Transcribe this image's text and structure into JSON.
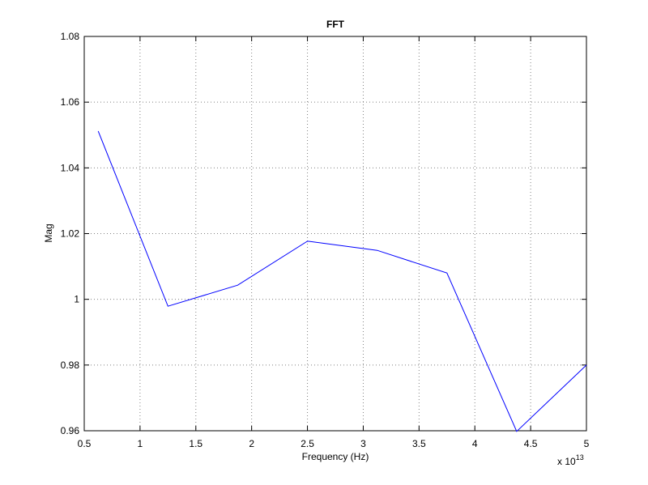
{
  "chart_data": {
    "type": "line",
    "title": "FFT",
    "x_label": "Frequency (Hz)",
    "y_label": "Mag",
    "x_multiplier": {
      "base": "x 10",
      "exponent": "13"
    },
    "x": [
      0.625,
      1.25,
      1.875,
      2.5,
      3.125,
      3.75,
      4.375,
      5.0
    ],
    "series": [
      {
        "name": "Mag",
        "color": "#0000ff",
        "values": [
          1.0512,
          0.9979,
          1.0043,
          1.0177,
          1.0149,
          1.008,
          0.9598,
          0.98
        ]
      }
    ],
    "xlim": [
      0.5,
      5
    ],
    "xticks": [
      0.5,
      1,
      1.5,
      2,
      2.5,
      3,
      3.5,
      4,
      4.5,
      5
    ],
    "ylim": [
      0.96,
      1.08
    ],
    "yticks": [
      0.96,
      0.98,
      1,
      1.02,
      1.04,
      1.06,
      1.08
    ],
    "grid": true
  }
}
